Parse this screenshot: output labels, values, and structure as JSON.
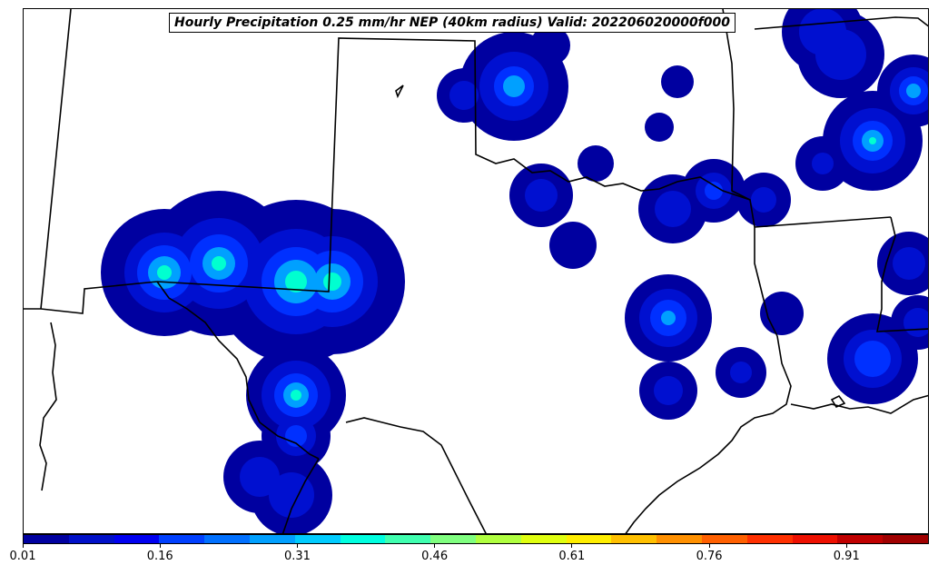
{
  "title": "Hourly Precipitation 0.25 mm/hr NEP (40km radius) Valid: 202206020000f000",
  "colorbar": {
    "colors": [
      "#0000a0",
      "#0010c8",
      "#0000f0",
      "#0040ff",
      "#0070ff",
      "#00a0ff",
      "#00ccff",
      "#00ffe0",
      "#40ffb0",
      "#80ff80",
      "#b0ff40",
      "#e0ff10",
      "#ffee00",
      "#ffc000",
      "#ff9000",
      "#ff6000",
      "#ff3000",
      "#ee1000",
      "#c00000",
      "#a00000"
    ],
    "tick_labels": [
      "0.01",
      "0.16",
      "0.31",
      "0.46",
      "0.61",
      "0.76",
      "0.91"
    ],
    "range": [
      0.01,
      1.0
    ]
  },
  "map": {
    "layer_colors": [
      "#0000a0",
      "#0010d0",
      "#0030ff",
      "#00a0ff",
      "#00ffd0"
    ],
    "boundary_color": "#000000"
  }
}
